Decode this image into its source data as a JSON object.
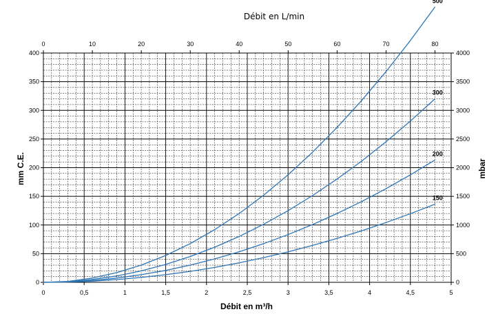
{
  "chart_data": {
    "type": "line",
    "top_axis_title": "Débit en L/min",
    "bottom_axis_title": "Débit en m³/h",
    "left_axis_title": "mm C.E.",
    "right_axis_title": "mbar",
    "x_bottom": {
      "lim": [
        0,
        5
      ],
      "ticks": [
        0,
        0.5,
        1,
        1.5,
        2,
        2.5,
        3,
        3.5,
        4,
        4.5,
        5
      ],
      "tick_labels": [
        "0",
        "0,5",
        "1",
        "1,5",
        "2",
        "2,5",
        "3",
        "3,5",
        "4",
        "4,5",
        "5"
      ]
    },
    "x_top": {
      "lim": [
        0,
        83.3
      ],
      "ticks": [
        0,
        10,
        20,
        30,
        40,
        50,
        60,
        70,
        80
      ],
      "tick_labels": [
        "0",
        "10",
        "20",
        "30",
        "40",
        "50",
        "60",
        "70",
        "80"
      ]
    },
    "y_left": {
      "lim": [
        0,
        400
      ],
      "ticks": [
        0,
        50,
        100,
        150,
        200,
        250,
        300,
        350,
        400
      ],
      "tick_labels": [
        "0",
        "50",
        "100",
        "150",
        "200",
        "250",
        "300",
        "350",
        "400"
      ]
    },
    "y_right": {
      "lim": [
        0,
        4000
      ],
      "ticks": [
        0,
        500,
        1000,
        1500,
        2000,
        2500,
        3000,
        3500,
        4000
      ],
      "tick_labels": [
        "0",
        "500",
        "1000",
        "1500",
        "2000",
        "2500",
        "3000",
        "3500",
        "4000"
      ]
    },
    "grid": true,
    "line_color": "#2e75b6",
    "x": [
      0,
      0.3,
      0.6,
      0.9,
      1.2,
      1.5,
      1.8,
      2.1,
      2.4,
      2.7,
      3.0,
      3.3,
      3.6,
      3.9,
      4.2,
      4.5,
      4.8
    ],
    "series": [
      {
        "name": "500",
        "values": [
          0,
          1.6,
          7.5,
          16.9,
          30.0,
          46.9,
          67.5,
          91.9,
          120.0,
          151.9,
          187.5,
          226.9,
          270.0,
          316.9,
          367.5,
          421.9,
          480.0
        ]
      },
      {
        "name": "300",
        "values": [
          0,
          1.1,
          5.0,
          11.2,
          20.0,
          31.2,
          45.0,
          61.3,
          80.0,
          101.3,
          125.0,
          151.3,
          180.0,
          211.3,
          245.0,
          281.3,
          320.0
        ]
      },
      {
        "name": "200",
        "values": [
          0,
          0.7,
          3.3,
          7.5,
          13.3,
          20.8,
          30.0,
          40.8,
          53.3,
          67.5,
          83.3,
          100.8,
          120.0,
          140.8,
          163.3,
          187.5,
          213.3
        ]
      },
      {
        "name": "150",
        "values": [
          0,
          0.5,
          2.1,
          4.8,
          8.5,
          13.3,
          19.1,
          26.0,
          34.0,
          43.1,
          53.2,
          64.4,
          76.6,
          89.9,
          104.3,
          119.7,
          136.2
        ]
      }
    ]
  }
}
